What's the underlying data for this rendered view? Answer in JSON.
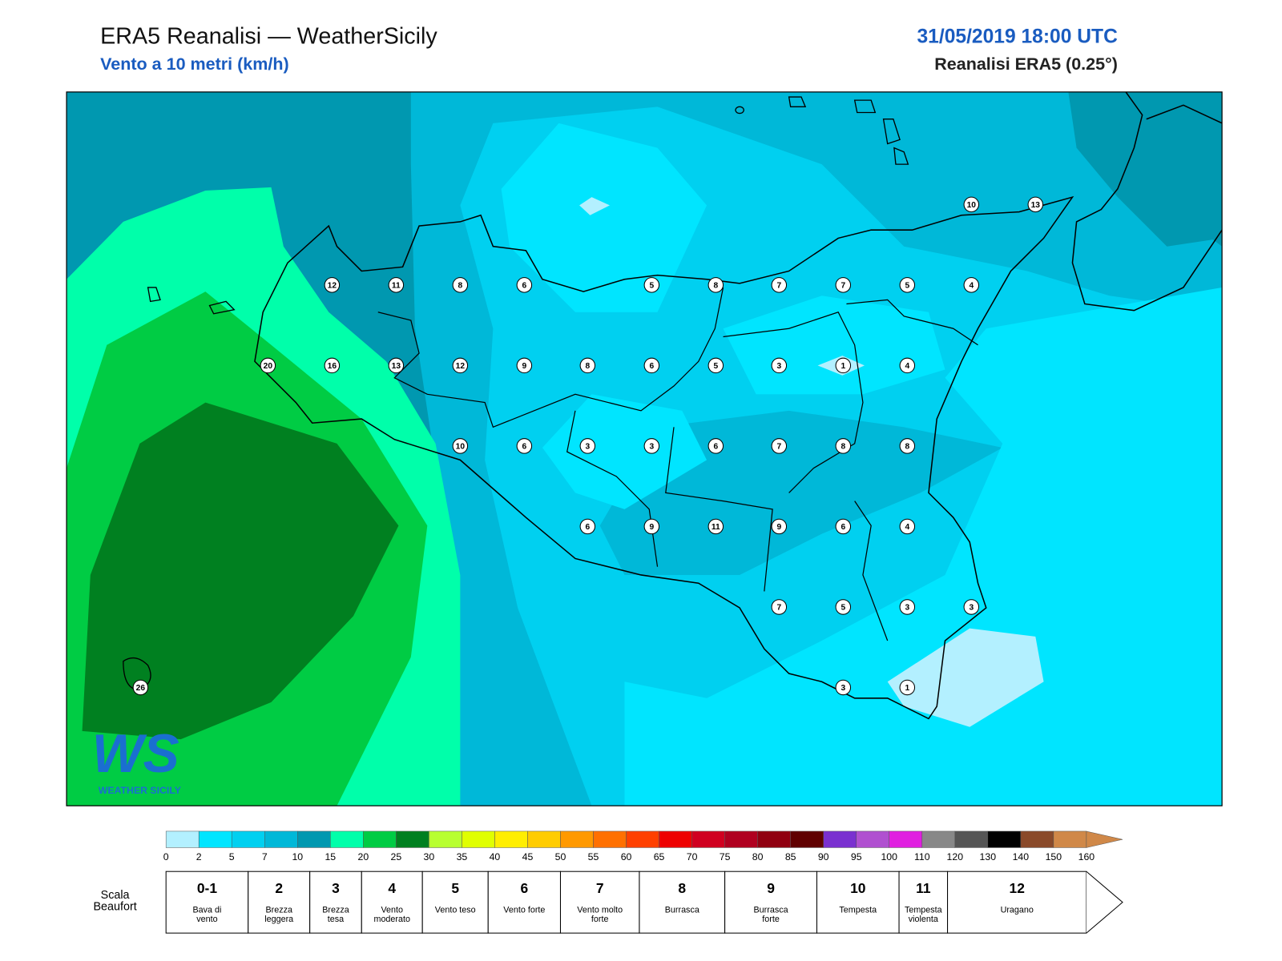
{
  "header": {
    "title": "ERA5 Reanalisi — WeatherSicily",
    "subtitle": "Vento a 10 metri (km/h)",
    "datetime": "31/05/2019 18:00 UTC",
    "source": "Reanalisi ERA5 (0.25°)"
  },
  "stations": [
    10,
    13,
    12,
    11,
    8,
    6,
    5,
    8,
    7,
    7,
    5,
    4,
    20,
    16,
    13,
    12,
    9,
    8,
    6,
    5,
    3,
    1,
    4,
    10,
    6,
    3,
    3,
    6,
    7,
    8,
    8,
    6,
    9,
    11,
    9,
    6,
    4,
    7,
    5,
    3,
    3,
    26,
    3,
    1
  ],
  "logo": {
    "mark": "WS",
    "name": "WEATHER SICILY"
  },
  "colorbar": {
    "colors": [
      "#b3f0ff",
      "#00e5ff",
      "#00d0f0",
      "#00b8d8",
      "#0098b0",
      "#00ffaa",
      "#00cc44",
      "#008020",
      "#b8ff30",
      "#e0ff00",
      "#ffee00",
      "#ffcc00",
      "#ff9900",
      "#ff7000",
      "#ff4000",
      "#ee0000",
      "#d00020",
      "#b00020",
      "#900010",
      "#600000",
      "#7a30d0",
      "#b050d0",
      "#e020e0",
      "#888888",
      "#555555",
      "#000000",
      "#8a4a2a",
      "#d08848"
    ],
    "ticks": [
      0,
      2,
      5,
      7,
      10,
      15,
      20,
      25,
      30,
      35,
      40,
      45,
      50,
      55,
      60,
      65,
      70,
      75,
      80,
      85,
      90,
      95,
      100,
      110,
      120,
      130,
      140,
      150,
      160
    ]
  },
  "beaufort": {
    "label": "Scala Beaufort",
    "levels": [
      {
        "force": "0-1",
        "description": "Bava di vento"
      },
      {
        "force": "2",
        "description": "Brezza leggera"
      },
      {
        "force": "3",
        "description": "Brezza tesa"
      },
      {
        "force": "4",
        "description": "Vento moderato"
      },
      {
        "force": "5",
        "description": "Vento teso"
      },
      {
        "force": "6",
        "description": "Vento forte"
      },
      {
        "force": "7",
        "description": "Vento molto forte"
      },
      {
        "force": "8",
        "description": "Burrasca"
      },
      {
        "force": "9",
        "description": "Burrasca forte"
      },
      {
        "force": "10",
        "description": "Tempesta"
      },
      {
        "force": "11",
        "description": "Tempesta violenta"
      },
      {
        "force": "12",
        "description": "Uragano"
      }
    ]
  }
}
